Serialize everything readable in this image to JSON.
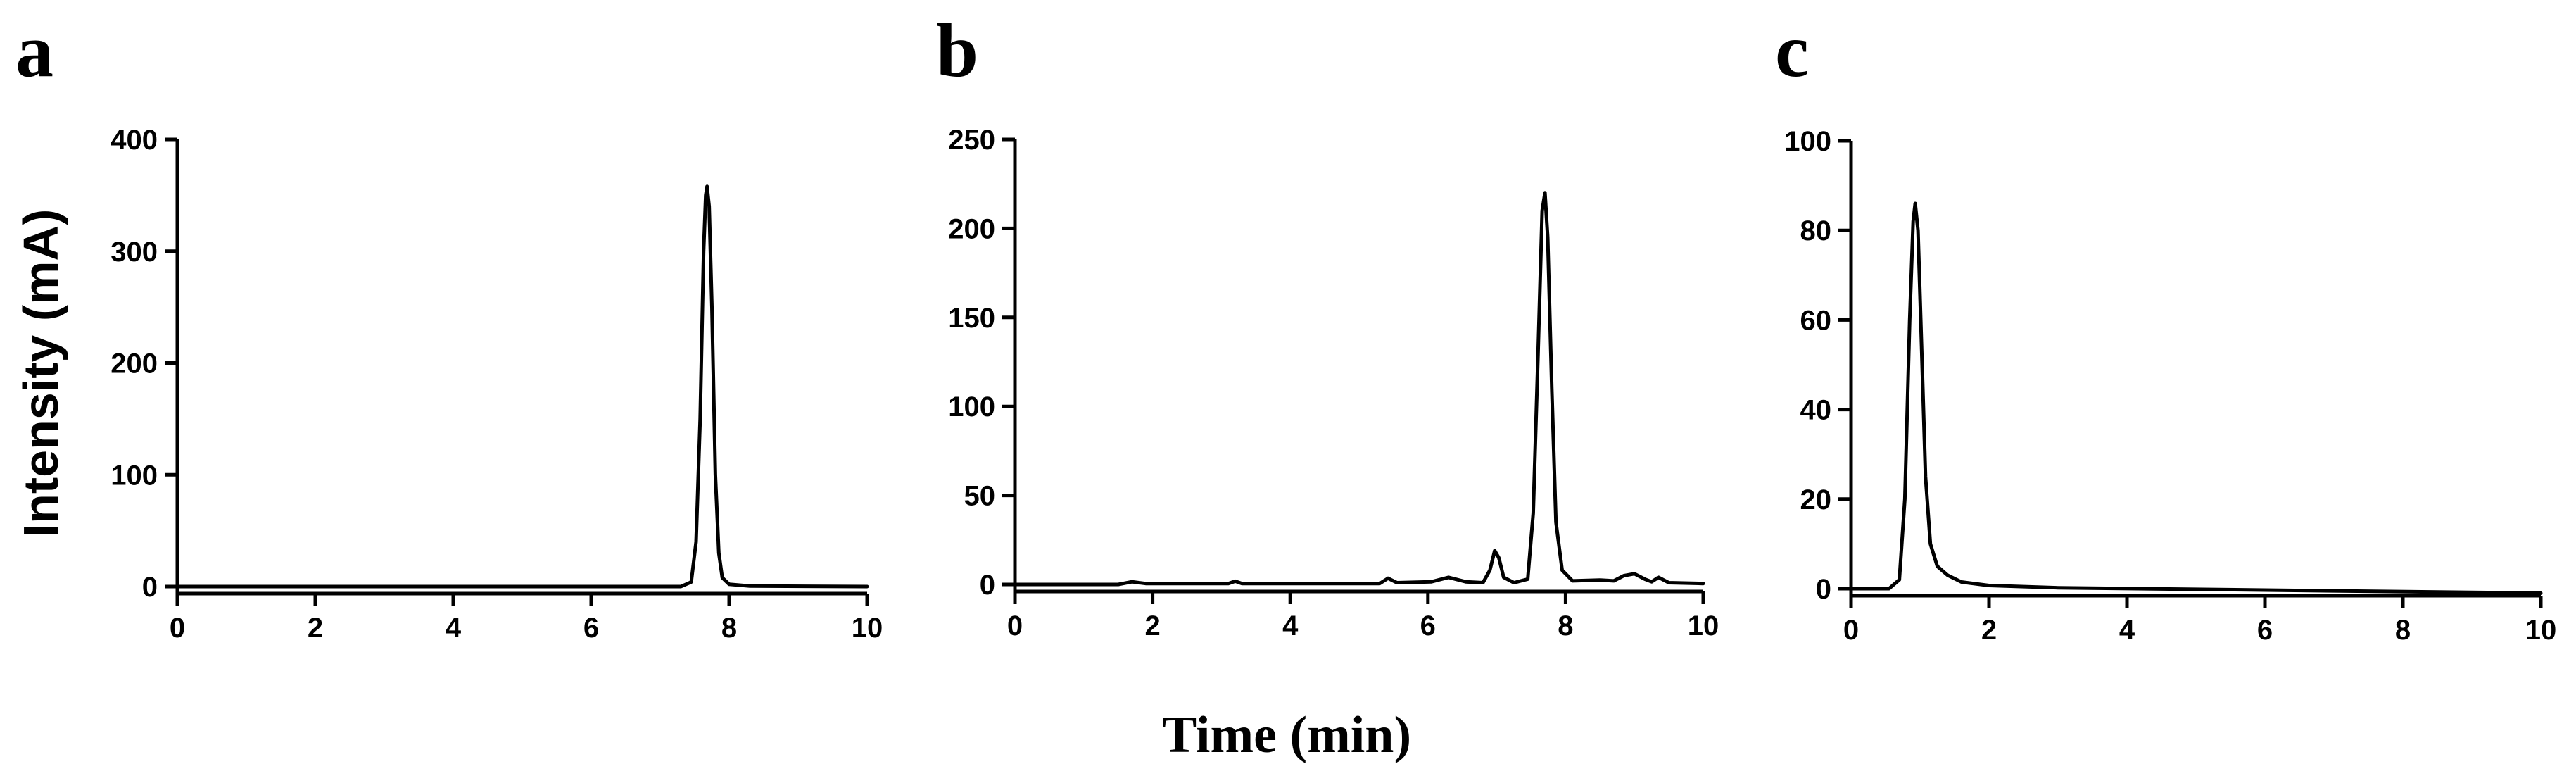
{
  "figure": {
    "shared_ylabel": "Intensity (mA)",
    "shared_xlabel": "Time (min)"
  },
  "chart_data": [
    {
      "panel": "a",
      "type": "line",
      "title": "",
      "xlabel": "Time (min)",
      "ylabel": "Intensity (mA)",
      "xlim": [
        0,
        10
      ],
      "ylim": [
        0,
        400
      ],
      "xticks": [
        0,
        2,
        4,
        6,
        8,
        10
      ],
      "yticks": [
        0,
        100,
        200,
        300,
        400
      ],
      "grid": false,
      "series": [
        {
          "points": [
            [
              0,
              0
            ],
            [
              7.3,
              0
            ],
            [
              7.45,
              4
            ],
            [
              7.52,
              40
            ],
            [
              7.58,
              150
            ],
            [
              7.63,
              300
            ],
            [
              7.66,
              350
            ],
            [
              7.68,
              358
            ],
            [
              7.71,
              340
            ],
            [
              7.75,
              250
            ],
            [
              7.8,
              100
            ],
            [
              7.85,
              30
            ],
            [
              7.9,
              8
            ],
            [
              8.0,
              2
            ],
            [
              8.3,
              0.5
            ],
            [
              10,
              0
            ]
          ]
        }
      ]
    },
    {
      "panel": "b",
      "type": "line",
      "title": "",
      "xlabel": "Time (min)",
      "ylabel": "",
      "xlim": [
        0,
        10
      ],
      "ylim": [
        0,
        250
      ],
      "xticks": [
        0,
        2,
        4,
        6,
        8,
        10
      ],
      "yticks": [
        0,
        50,
        100,
        150,
        200,
        250
      ],
      "grid": false,
      "series": [
        {
          "points": [
            [
              0,
              0
            ],
            [
              1.5,
              0
            ],
            [
              1.7,
              1.5
            ],
            [
              1.9,
              0.5
            ],
            [
              3.1,
              0.5
            ],
            [
              3.2,
              1.8
            ],
            [
              3.3,
              0.5
            ],
            [
              5.3,
              0.5
            ],
            [
              5.42,
              3.5
            ],
            [
              5.55,
              1
            ],
            [
              6.05,
              1.5
            ],
            [
              6.3,
              4
            ],
            [
              6.55,
              1.5
            ],
            [
              6.8,
              1
            ],
            [
              6.9,
              8
            ],
            [
              6.97,
              19
            ],
            [
              7.03,
              15
            ],
            [
              7.1,
              4
            ],
            [
              7.25,
              1
            ],
            [
              7.45,
              3
            ],
            [
              7.53,
              40
            ],
            [
              7.6,
              130
            ],
            [
              7.66,
              210
            ],
            [
              7.7,
              220
            ],
            [
              7.74,
              195
            ],
            [
              7.8,
              110
            ],
            [
              7.86,
              35
            ],
            [
              7.95,
              8
            ],
            [
              8.1,
              2
            ],
            [
              8.5,
              2.5
            ],
            [
              8.7,
              2
            ],
            [
              8.85,
              5
            ],
            [
              9.0,
              6
            ],
            [
              9.15,
              3
            ],
            [
              9.25,
              1.5
            ],
            [
              9.35,
              4
            ],
            [
              9.5,
              1
            ],
            [
              10,
              0.5
            ]
          ]
        }
      ]
    },
    {
      "panel": "c",
      "type": "line",
      "title": "",
      "xlabel": "Time (min)",
      "ylabel": "",
      "xlim": [
        0,
        10
      ],
      "ylim": [
        0,
        100
      ],
      "xticks": [
        0,
        2,
        4,
        6,
        8,
        10
      ],
      "yticks": [
        0,
        20,
        40,
        60,
        80,
        100
      ],
      "grid": false,
      "series": [
        {
          "points": [
            [
              0,
              0
            ],
            [
              0.55,
              0
            ],
            [
              0.7,
              2
            ],
            [
              0.78,
              20
            ],
            [
              0.85,
              60
            ],
            [
              0.9,
              82
            ],
            [
              0.93,
              86
            ],
            [
              0.97,
              80
            ],
            [
              1.02,
              55
            ],
            [
              1.08,
              25
            ],
            [
              1.15,
              10
            ],
            [
              1.25,
              5
            ],
            [
              1.4,
              3
            ],
            [
              1.6,
              1.5
            ],
            [
              2.0,
              0.7
            ],
            [
              3.0,
              0.2
            ],
            [
              10,
              -1
            ]
          ]
        }
      ]
    }
  ]
}
